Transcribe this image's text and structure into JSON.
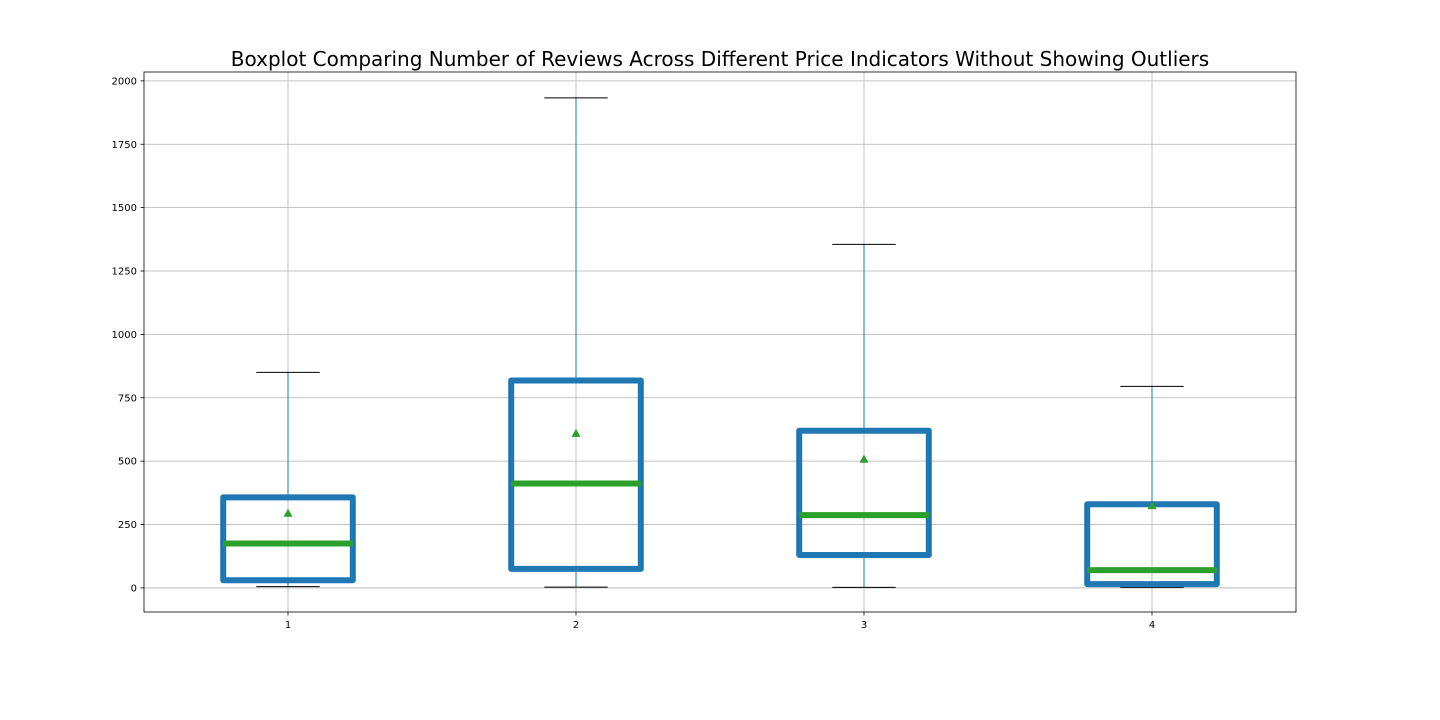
{
  "chart_data": {
    "type": "boxplot",
    "title": "Boxplot Comparing Number of Reviews Across Different Price Indicators Without Showing Outliers",
    "xlabel": "",
    "ylabel": "",
    "categories": [
      "1",
      "2",
      "3",
      "4"
    ],
    "boxes": [
      {
        "category": "1",
        "whisker_low": 5,
        "q1": 30,
        "median": 175,
        "q3": 357,
        "whisker_high": 850,
        "mean": 295
      },
      {
        "category": "2",
        "whisker_low": 3,
        "q1": 75,
        "median": 412,
        "q3": 818,
        "whisker_high": 1933,
        "mean": 610
      },
      {
        "category": "3",
        "whisker_low": 2,
        "q1": 130,
        "median": 287,
        "q3": 620,
        "whisker_high": 1355,
        "mean": 508
      },
      {
        "category": "4",
        "whisker_low": 2,
        "q1": 15,
        "median": 70,
        "q3": 330,
        "whisker_high": 795,
        "mean": 325
      }
    ],
    "ylim": [
      -95,
      2035
    ],
    "xlim": [
      0.5,
      4.5
    ],
    "yticks": [
      0,
      250,
      500,
      750,
      1000,
      1250,
      1500,
      1750,
      2000
    ],
    "ytick_labels": [
      "0",
      "250",
      "500",
      "750",
      "1000",
      "1250",
      "1500",
      "1750",
      "2000"
    ],
    "grid": true,
    "showfliers": false,
    "showmeans": true,
    "colors": {
      "box": "#1f77b4",
      "median": "#2ca02c",
      "mean": "#2ca02c",
      "whisker": "#1f77b4",
      "cap": "#000000",
      "grid": "#b0b0b0"
    }
  }
}
